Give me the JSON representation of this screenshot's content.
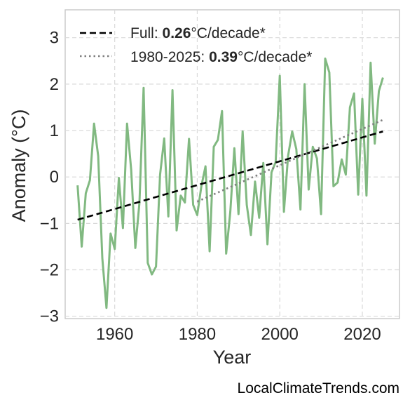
{
  "chart_data": {
    "type": "line",
    "xlabel": "Year",
    "ylabel": "Anomaly (°C)",
    "xlim": [
      1948,
      2029
    ],
    "ylim": [
      -3.05,
      3.6
    ],
    "x_ticks": [
      1960,
      1980,
      2000,
      2020
    ],
    "x_tick_labels": [
      "1960",
      "1980",
      "2000",
      "2020"
    ],
    "y_ticks": [
      3,
      2,
      1,
      0,
      -1,
      -2,
      -3
    ],
    "y_tick_labels": [
      "3",
      "2",
      "1",
      "0",
      "−1",
      "−2",
      "−3"
    ],
    "grid": true,
    "legend_position": "top-left",
    "series": [
      {
        "style": "solid",
        "color": "#81b981",
        "x": [
          1951,
          1952,
          1953,
          1954,
          1955,
          1956,
          1957,
          1958,
          1959,
          1960,
          1961,
          1962,
          1963,
          1964,
          1965,
          1966,
          1967,
          1968,
          1969,
          1970,
          1971,
          1972,
          1973,
          1974,
          1975,
          1976,
          1977,
          1978,
          1979,
          1980,
          1981,
          1982,
          1983,
          1984,
          1985,
          1986,
          1987,
          1988,
          1989,
          1990,
          1991,
          1992,
          1993,
          1994,
          1995,
          1996,
          1997,
          1998,
          1999,
          2000,
          2001,
          2002,
          2003,
          2004,
          2005,
          2006,
          2007,
          2008,
          2009,
          2010,
          2011,
          2012,
          2013,
          2014,
          2015,
          2016,
          2017,
          2018,
          2019,
          2020,
          2021,
          2022,
          2023,
          2024,
          2025
        ],
        "y": [
          -0.18,
          -1.5,
          -0.35,
          -0.07,
          1.15,
          0.45,
          -1.75,
          -2.82,
          -1.22,
          -1.55,
          -0.02,
          -1.1,
          1.15,
          0.15,
          -1.53,
          -0.55,
          1.92,
          -1.85,
          -2.1,
          -1.93,
          0.05,
          0.83,
          -0.85,
          1.87,
          -1.15,
          -0.4,
          -0.55,
          0.82,
          -0.6,
          -0.82,
          -0.2,
          0.23,
          -1.6,
          0.65,
          0.8,
          1.42,
          -1.65,
          -0.75,
          0.62,
          -0.8,
          0.98,
          -0.6,
          -1.25,
          -0.1,
          -0.88,
          0.3,
          -1.45,
          0.1,
          0.32,
          2.18,
          -0.75,
          0.45,
          0.98,
          0.6,
          -0.7,
          2.0,
          -0.27,
          0.65,
          0.4,
          -0.8,
          2.55,
          2.25,
          -0.2,
          -0.12,
          0.38,
          0.05,
          1.5,
          1.8,
          -0.38,
          1.68,
          -0.4,
          2.46,
          0.72,
          1.85,
          2.14
        ]
      },
      {
        "name": "Full",
        "style": "dashed",
        "color": "#000000",
        "x": [
          1951,
          2025
        ],
        "y": [
          -0.92,
          0.98
        ],
        "rate": "0.26",
        "unit": "°C/decade*"
      },
      {
        "name": "1980-2025",
        "style": "dotted",
        "color": "#7f7f7f",
        "x": [
          1980,
          2025
        ],
        "y": [
          -0.53,
          1.23
        ],
        "rate": "0.39",
        "unit": "°C/decade*"
      }
    ]
  },
  "legend": {
    "full_name": "Full: ",
    "full_rate": "0.26",
    "full_unit": "°C/decade*",
    "recent_name": "1980-2025: ",
    "recent_rate": "0.39",
    "recent_unit": "°C/decade*"
  },
  "footer": {
    "source": "LocalClimateTrends.com"
  },
  "colors": {
    "anomaly_line": "#81b981",
    "full_trend": "#000000",
    "recent_trend": "#7f7f7f",
    "grid": "#d9d9d9",
    "frame": "#cccccc"
  }
}
